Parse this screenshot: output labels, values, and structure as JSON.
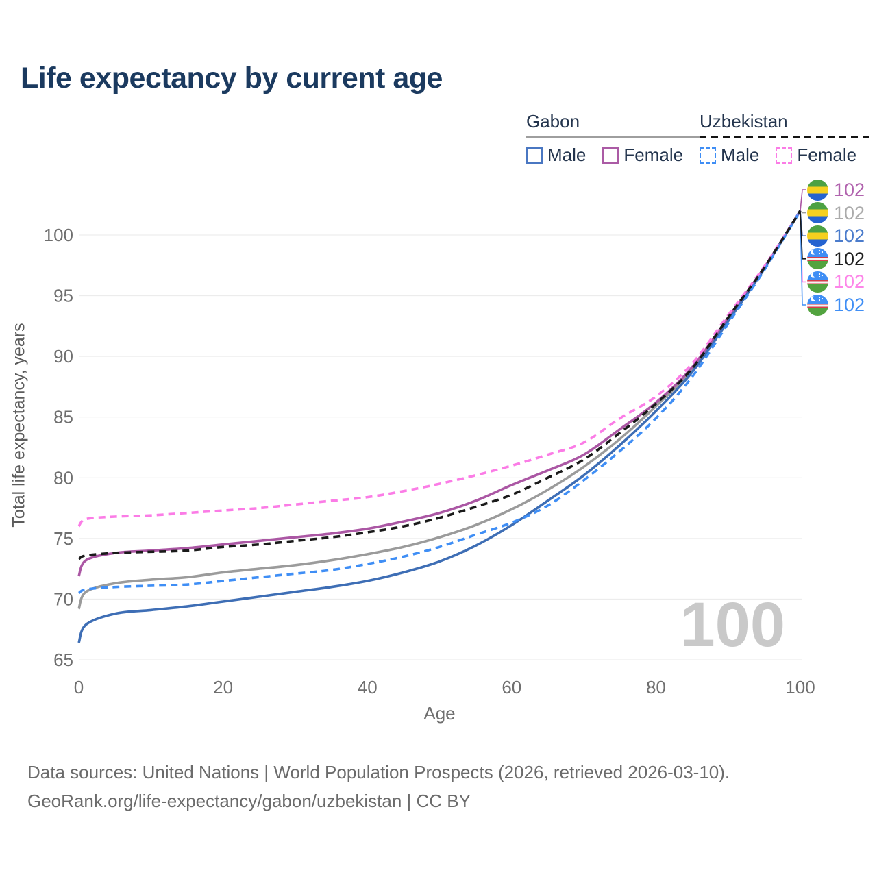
{
  "header": {
    "title": "Life expectancy by current age"
  },
  "legend": {
    "groups": [
      {
        "name": "Gabon",
        "line_style": "solid",
        "line_color": "#9e9e9e",
        "items": [
          {
            "label": "Male",
            "color": "#4a77c2"
          },
          {
            "label": "Female",
            "color": "#ab5ba5"
          }
        ]
      },
      {
        "name": "Uzbekistan",
        "line_style": "dashed",
        "line_color": "#141414",
        "items": [
          {
            "label": "Male",
            "color": "#3f8ef5"
          },
          {
            "label": "Female",
            "color": "#fb7ce6"
          }
        ]
      }
    ]
  },
  "watermark": {
    "age_counter": "100"
  },
  "footer": {
    "line1": "Data sources: United Nations | World Population Prospects (2026, retrieved 2026-03-10).",
    "line2": "GeoRank.org/life-expectancy/gabon/uzbekistan | CC BY"
  },
  "chart_data": {
    "type": "line",
    "title": "Life expectancy by current age",
    "xlabel": "Age",
    "ylabel": "Total life expectancy, years",
    "xlim": [
      0,
      100
    ],
    "ylim": [
      65,
      102
    ],
    "xticks": [
      0,
      20,
      40,
      60,
      80,
      100
    ],
    "yticks": [
      65,
      70,
      75,
      80,
      85,
      90,
      95,
      100
    ],
    "grid": "horizontal",
    "x": [
      0,
      1,
      5,
      10,
      15,
      20,
      25,
      30,
      35,
      40,
      45,
      50,
      55,
      60,
      65,
      70,
      75,
      80,
      85,
      90,
      95,
      100
    ],
    "series": [
      {
        "id": "gabon-total",
        "name": "Gabon",
        "country": "Gabon",
        "sex": "Both sexes",
        "color": "#9b9b9b",
        "dash": "solid",
        "label_row": 1,
        "end_value": 102,
        "values": [
          69.2,
          70.6,
          71.3,
          71.6,
          71.8,
          72.2,
          72.5,
          72.8,
          73.2,
          73.7,
          74.3,
          75.1,
          76.1,
          77.4,
          79.0,
          80.9,
          83.2,
          85.9,
          88.9,
          93.1,
          97.3,
          102
        ]
      },
      {
        "id": "gabon-female",
        "name": "Gabon Female",
        "country": "Gabon",
        "sex": "Female",
        "color": "#ab57a4",
        "dash": "solid",
        "label_row": 0,
        "end_value": 102,
        "values": [
          71.9,
          73.2,
          73.8,
          74.0,
          74.2,
          74.5,
          74.8,
          75.1,
          75.4,
          75.8,
          76.4,
          77.1,
          78.1,
          79.4,
          80.6,
          81.9,
          84.0,
          86.2,
          89.1,
          93.2,
          97.3,
          102
        ]
      },
      {
        "id": "gabon-male",
        "name": "Gabon Male",
        "country": "Gabon",
        "sex": "Male",
        "color": "#3e6eb5",
        "dash": "solid",
        "label_row": 2,
        "end_value": 102,
        "values": [
          66.4,
          67.9,
          68.8,
          69.1,
          69.4,
          69.8,
          70.2,
          70.6,
          71.0,
          71.5,
          72.2,
          73.1,
          74.4,
          76.1,
          78.1,
          80.2,
          82.7,
          85.5,
          88.7,
          92.9,
          97.2,
          102
        ]
      },
      {
        "id": "uzbekistan-female",
        "name": "Uzbekistan Female",
        "country": "Uzbekistan",
        "sex": "Female",
        "color": "#fb7ce6",
        "dash": "dashed",
        "label_row": 4,
        "end_value": 102,
        "values": [
          76.0,
          76.6,
          76.8,
          76.9,
          77.1,
          77.3,
          77.5,
          77.8,
          78.1,
          78.4,
          78.9,
          79.5,
          80.2,
          81.0,
          81.9,
          82.9,
          84.9,
          86.7,
          89.4,
          93.4,
          97.4,
          102
        ]
      },
      {
        "id": "uzbekistan-male",
        "name": "Uzbekistan Male",
        "country": "Uzbekistan",
        "sex": "Male",
        "color": "#3f8ef5",
        "dash": "dashed",
        "label_row": 5,
        "end_value": 102,
        "values": [
          70.5,
          70.8,
          71.0,
          71.1,
          71.2,
          71.5,
          71.8,
          72.1,
          72.4,
          72.9,
          73.5,
          74.3,
          75.3,
          76.3,
          77.7,
          79.8,
          82.2,
          84.9,
          88.3,
          92.7,
          97.1,
          102
        ]
      },
      {
        "id": "uzbekistan-total",
        "name": "Uzbekistan",
        "country": "Uzbekistan",
        "sex": "Both sexes",
        "color": "#1a1a1a",
        "dash": "dashed",
        "label_row": 3,
        "end_value": 102,
        "values": [
          73.3,
          73.6,
          73.8,
          73.9,
          74.0,
          74.3,
          74.5,
          74.8,
          75.1,
          75.5,
          76.0,
          76.7,
          77.6,
          78.6,
          80.0,
          81.5,
          83.7,
          86.1,
          89.0,
          93.2,
          97.3,
          102
        ]
      }
    ],
    "end_labels": [
      {
        "flag": "gabon",
        "value": "102",
        "color": "#b163ae",
        "series": "gabon-female"
      },
      {
        "flag": "gabon",
        "value": "102",
        "color": "#ababab",
        "series": "gabon-total"
      },
      {
        "flag": "gabon",
        "value": "102",
        "color": "#4b7ccc",
        "series": "gabon-male"
      },
      {
        "flag": "uzbekistan",
        "value": "102",
        "color": "#1f1f1f",
        "series": "uzbekistan-total"
      },
      {
        "flag": "uzbekistan",
        "value": "102",
        "color": "#fd86e9",
        "series": "uzbekistan-female"
      },
      {
        "flag": "uzbekistan",
        "value": "102",
        "color": "#3f8ef5",
        "series": "uzbekistan-male"
      }
    ]
  }
}
